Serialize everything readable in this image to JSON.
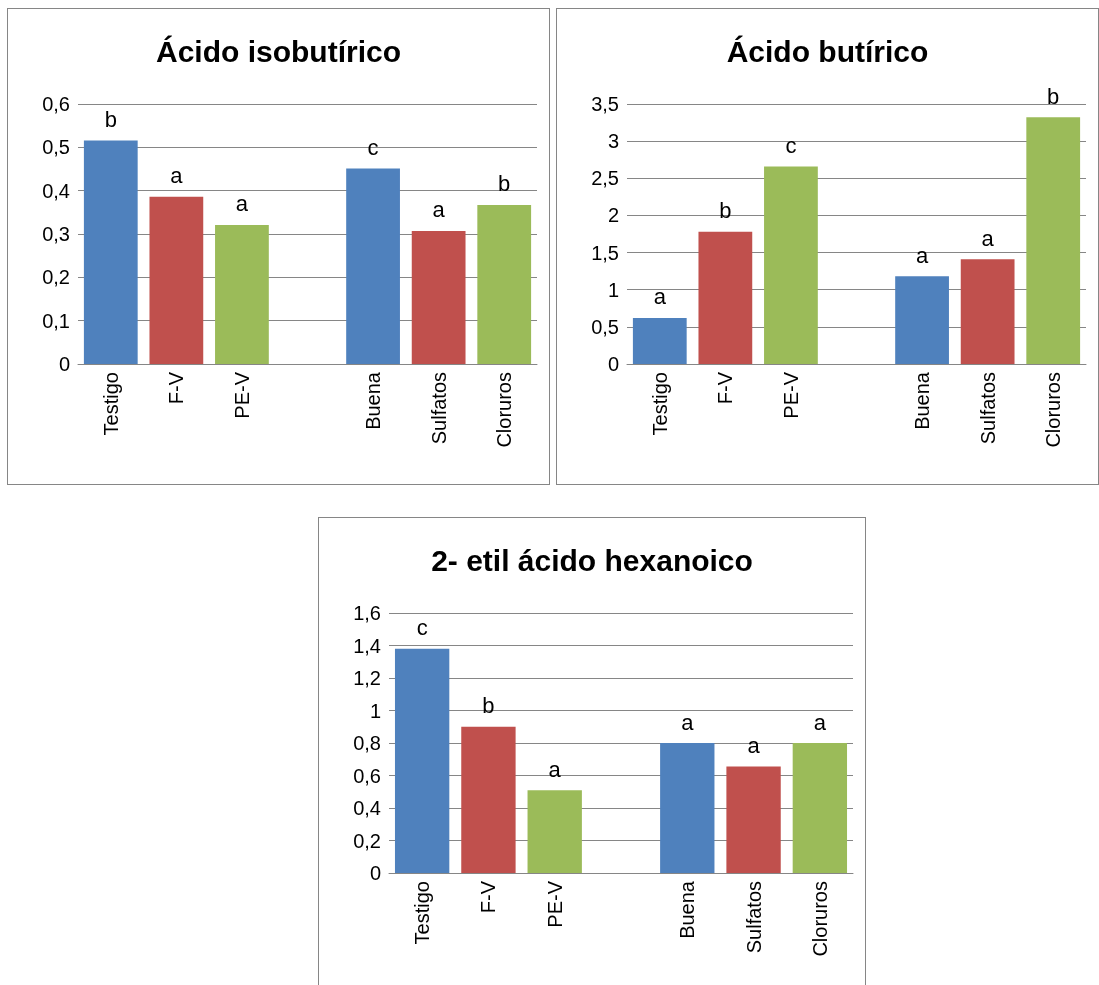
{
  "chart_data": [
    {
      "type": "bar",
      "title": "Ácido isobutírico",
      "categories": [
        "Testigo",
        "F-V",
        "PE-V",
        null,
        "Buena",
        "Sulfatos",
        "Cloruros"
      ],
      "colors": [
        "#4f81bd",
        "#c0504d",
        "#9bbb59",
        null,
        "#4f81bd",
        "#c0504d",
        "#9bbb59"
      ],
      "values": [
        0.516,
        0.386,
        0.321,
        null,
        0.451,
        0.307,
        0.367
      ],
      "value_labels": [
        "b",
        "a",
        "a",
        null,
        "c",
        "a",
        "b"
      ],
      "ylim": [
        0,
        0.6
      ],
      "yticks": [
        0,
        {
          "value": 0.1,
          "label": "0,1"
        },
        {
          "value": 0.2,
          "label": "0,2"
        },
        {
          "value": 0.3,
          "label": "0,3"
        },
        {
          "value": 0.4,
          "label": "0,4"
        },
        {
          "value": 0.5,
          "label": "0,5"
        },
        {
          "value": 0.6,
          "label": "0,6"
        }
      ],
      "grid": "y"
    },
    {
      "type": "bar",
      "title": "Ácido butírico",
      "categories": [
        "Testigo",
        "F-V",
        "PE-V",
        null,
        "Buena",
        "Sulfatos",
        "Cloruros"
      ],
      "colors": [
        "#4f81bd",
        "#c0504d",
        "#9bbb59",
        null,
        "#4f81bd",
        "#c0504d",
        "#9bbb59"
      ],
      "values": [
        0.62,
        1.78,
        2.66,
        null,
        1.18,
        1.41,
        3.32
      ],
      "value_labels": [
        "a",
        "b",
        "c",
        null,
        "a",
        "a",
        "b"
      ],
      "ylim": [
        0,
        3.5
      ],
      "yticks": [
        0,
        {
          "value": 0.5,
          "label": "0,5"
        },
        1,
        {
          "value": 1.5,
          "label": "1,5"
        },
        2,
        {
          "value": 2.5,
          "label": "2,5"
        },
        3,
        {
          "value": 3.5,
          "label": "3,5"
        }
      ],
      "grid": "y"
    },
    {
      "type": "bar",
      "title": "2- etil ácido hexanoico",
      "categories": [
        "Testigo",
        "F-V",
        "PE-V",
        null,
        "Buena",
        "Sulfatos",
        "Cloruros"
      ],
      "colors": [
        "#4f81bd",
        "#c0504d",
        "#9bbb59",
        null,
        "#4f81bd",
        "#c0504d",
        "#9bbb59"
      ],
      "values": [
        1.38,
        0.9,
        0.51,
        null,
        0.8,
        0.655,
        0.8
      ],
      "value_labels": [
        "c",
        "b",
        "a",
        null,
        "a",
        "a",
        "a"
      ],
      "ylim": [
        0,
        1.6
      ],
      "yticks": [
        0,
        {
          "value": 0.2,
          "label": "0,2"
        },
        {
          "value": 0.4,
          "label": "0,4"
        },
        {
          "value": 0.6,
          "label": "0,6"
        },
        {
          "value": 0.8,
          "label": "0,8"
        },
        1,
        {
          "value": 1.2,
          "label": "1,2"
        },
        {
          "value": 1.4,
          "label": "1,4"
        },
        {
          "value": 1.6,
          "label": "1,6"
        }
      ],
      "grid": "y"
    }
  ]
}
